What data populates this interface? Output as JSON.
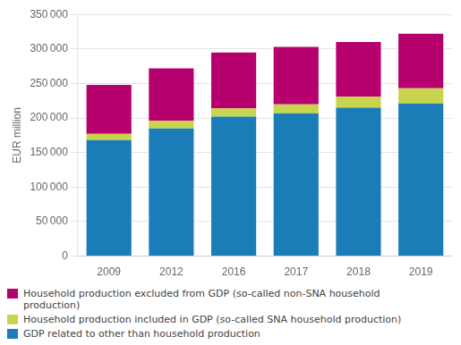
{
  "chart_data": {
    "type": "bar",
    "stacked": true,
    "categories": [
      "2009",
      "2012",
      "2016",
      "2017",
      "2018",
      "2019"
    ],
    "series": [
      {
        "name": "GDP related to other than household production",
        "color": "#1b7db8",
        "values": [
          168000,
          185000,
          202000,
          207000,
          215000,
          221000
        ]
      },
      {
        "name": "Household production included in GDP (so-called SNA household production)",
        "color": "#c8d44e",
        "values": [
          9000,
          11000,
          12000,
          13000,
          16000,
          22000
        ]
      },
      {
        "name": "Household production excluded from GDP (so-called non-SNA household\nproduction)",
        "color": "#b5006e",
        "values": [
          71000,
          76000,
          81000,
          83000,
          79000,
          79000
        ]
      }
    ],
    "ylabel": "EUR million",
    "ylim": [
      0,
      350000
    ],
    "yticks": [
      0,
      {
        "value": 50000,
        "label": "50 000"
      },
      {
        "value": 100000,
        "label": "100 000"
      },
      {
        "value": 150000,
        "label": "150 000"
      },
      {
        "value": 200000,
        "label": "200 000"
      },
      {
        "value": 250000,
        "label": "250 000"
      },
      {
        "value": 300000,
        "label": "300 000"
      },
      {
        "value": 350000,
        "label": "350 000"
      }
    ],
    "grid": true,
    "legend": "bottom"
  }
}
